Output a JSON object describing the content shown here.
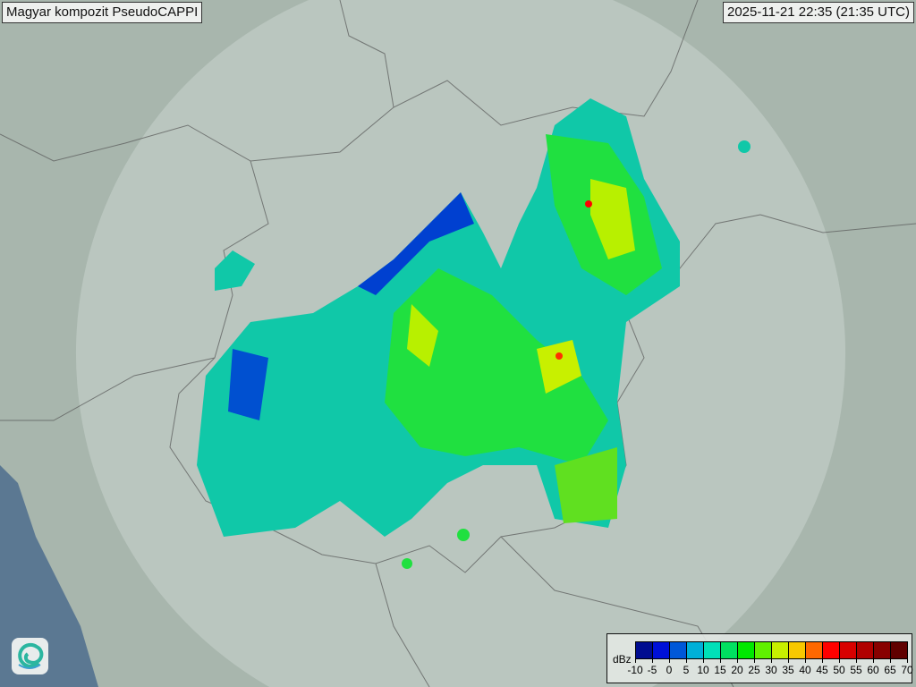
{
  "title": "Magyar kompozit  PseudoCAPPI",
  "timestamp": "2025-11-21 22:35 (21:35 UTC)",
  "logo": {
    "icon": "swirl-logo-icon"
  },
  "legend": {
    "unit": "dBz",
    "ticks": [
      "-10",
      "-5",
      "0",
      "5",
      "10",
      "15",
      "20",
      "25",
      "30",
      "35",
      "40",
      "45",
      "50",
      "55",
      "60",
      "65",
      "70"
    ],
    "colors": [
      "#000c90",
      "#0010d8",
      "#0058d8",
      "#00b0d8",
      "#00e0b8",
      "#00e060",
      "#00e800",
      "#60f000",
      "#c8f000",
      "#f8c800",
      "#ff6800",
      "#ff0000",
      "#d80000",
      "#b00000",
      "#880000",
      "#600000"
    ]
  },
  "map_colors": {
    "terrain": "#a8b6ad",
    "coverage": "#c9d3ce",
    "sea": "#5b7892"
  }
}
